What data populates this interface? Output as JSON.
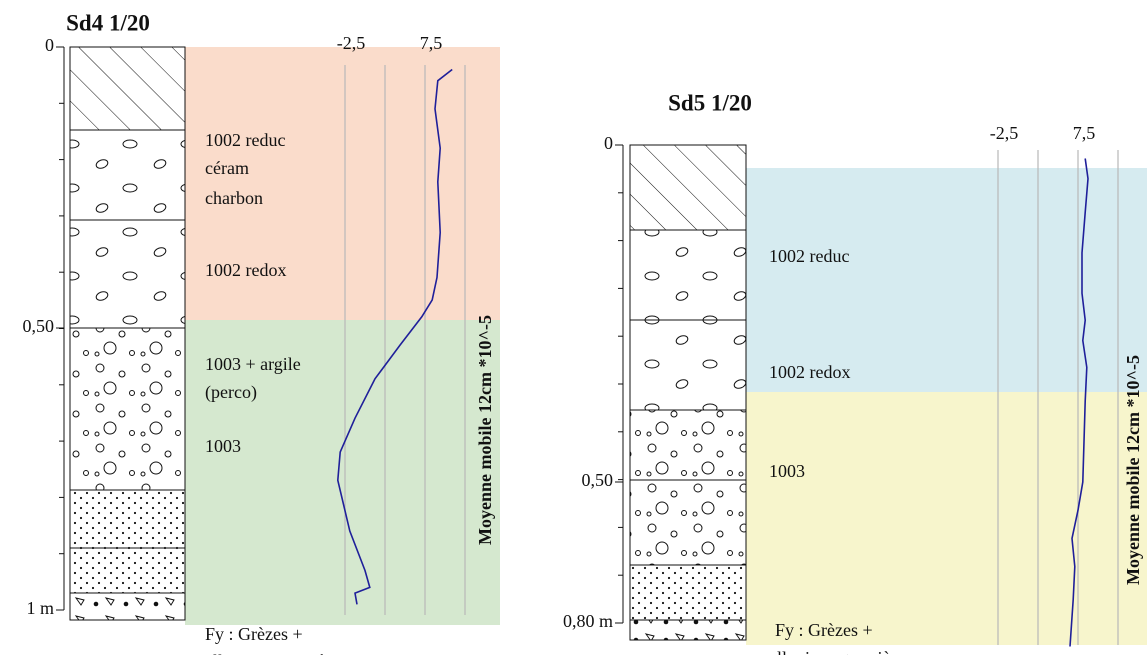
{
  "logs": [
    {
      "title": "Sd4 1/20",
      "depth_ticks": [
        {
          "value": 0,
          "label": "0"
        },
        {
          "value": 0.5,
          "label": "0,50"
        },
        {
          "value": 1,
          "label": "1 m"
        }
      ],
      "xlim": [
        -2.5,
        12.5
      ],
      "xticks": [
        {
          "value": -2.5,
          "label": "-2,5"
        },
        {
          "value": 2.5,
          "label": null
        },
        {
          "value": 7.5,
          "label": "7,5"
        },
        {
          "value": 12.5,
          "label": null
        }
      ],
      "axis_label": "Moyenne mobile 12cm *10^-5",
      "layer_labels": [
        "1002 reduc",
        "céram",
        "charbon",
        "1002 redox",
        "1003 + argile",
        "(perco)",
        "1003",
        "Fy : Grèzes +",
        "alluvions grossières"
      ],
      "curve": {
        "color": "#1f1f9a",
        "depth": [
          0.04,
          0.06,
          0.11,
          0.18,
          0.24,
          0.33,
          0.41,
          0.45,
          0.48,
          0.53,
          0.59,
          0.66,
          0.72,
          0.77,
          0.86,
          0.93,
          0.96,
          0.97,
          0.99
        ],
        "values": [
          10.9,
          9.1,
          8.75,
          9.4,
          9.1,
          9.4,
          9.0,
          8.4,
          7.1,
          4.4,
          1.25,
          -1.25,
          -3.1,
          -3.4,
          -1.9,
          0,
          0.6,
          -1.25,
          -1.0
        ]
      }
    },
    {
      "title": "Sd5 1/20",
      "depth_ticks": [
        {
          "value": 0,
          "label": "0"
        },
        {
          "value": 0.5,
          "label": "0,50"
        },
        {
          "value": 0.8,
          "label": "0,80 m"
        }
      ],
      "xlim": [
        -2.5,
        12.5
      ],
      "xticks": [
        {
          "value": -2.5,
          "label": "-2,5"
        },
        {
          "value": 2.5,
          "label": null
        },
        {
          "value": 7.5,
          "label": "7,5"
        },
        {
          "value": 12.5,
          "label": null
        }
      ],
      "axis_label": "Moyenne mobile 12cm *10^-5",
      "layer_labels": [
        "1002 reduc",
        "1002 redox",
        "1003",
        "Fy : Grèzes +",
        "alluvions grossières"
      ],
      "curve": {
        "color": "#1f1f9a",
        "depth": [
          0.02,
          0.05,
          0.1,
          0.16,
          0.22,
          0.26,
          0.29,
          0.33,
          0.38,
          0.44,
          0.5,
          0.56,
          0.62,
          0.68,
          0.75,
          0.85
        ],
        "values": [
          8.4,
          8.75,
          8.4,
          8.0,
          8.0,
          8.4,
          8.1,
          8.6,
          8.4,
          8.25,
          8.1,
          7.5,
          6.75,
          7.1,
          6.9,
          6.5
        ]
      }
    }
  ]
}
